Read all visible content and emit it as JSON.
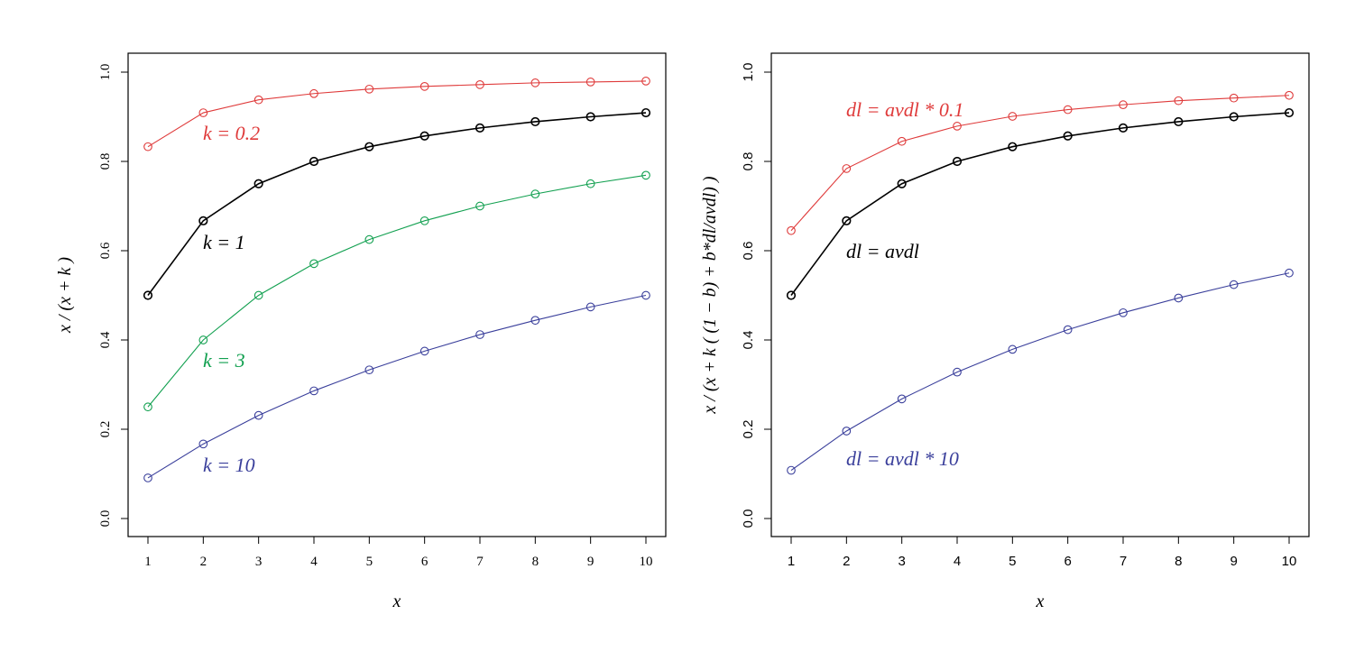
{
  "chart_data": [
    {
      "type": "line",
      "xlabel": "x",
      "ylabel": "x / (x + k )",
      "x": [
        1,
        2,
        3,
        4,
        5,
        6,
        7,
        8,
        9,
        10
      ],
      "xlim": [
        1,
        10
      ],
      "ylim": [
        0,
        1
      ],
      "xticks": [
        "1",
        "2",
        "3",
        "4",
        "5",
        "6",
        "7",
        "8",
        "9",
        "10"
      ],
      "yticks": [
        "0.0",
        "0.2",
        "0.4",
        "0.6",
        "0.8",
        "1.0"
      ],
      "grid": false,
      "legend": "none",
      "series": [
        {
          "name": "k = 0.2",
          "color": "#DF3A3A",
          "values": [
            0.833,
            0.909,
            0.938,
            0.952,
            0.962,
            0.968,
            0.972,
            0.976,
            0.978,
            0.98
          ]
        },
        {
          "name": "k = 1",
          "color": "#000000",
          "values": [
            0.5,
            0.667,
            0.75,
            0.8,
            0.833,
            0.857,
            0.875,
            0.889,
            0.9,
            0.909
          ]
        },
        {
          "name": "k = 3",
          "color": "#12A050",
          "values": [
            0.25,
            0.4,
            0.5,
            0.571,
            0.625,
            0.667,
            0.7,
            0.727,
            0.75,
            0.769
          ]
        },
        {
          "name": "k = 10",
          "color": "#3A3F9B",
          "values": [
            0.091,
            0.167,
            0.231,
            0.286,
            0.333,
            0.375,
            0.412,
            0.444,
            0.474,
            0.5
          ]
        }
      ]
    },
    {
      "type": "line",
      "xlabel": "x",
      "ylabel": "x / (x + k ( (1 − b) + b*dl/avdl) )",
      "x": [
        1,
        2,
        3,
        4,
        5,
        6,
        7,
        8,
        9,
        10
      ],
      "xlim": [
        1,
        10
      ],
      "ylim": [
        0,
        1
      ],
      "xticks": [
        "1",
        "2",
        "3",
        "4",
        "5",
        "6",
        "7",
        "8",
        "9",
        "10"
      ],
      "yticks": [
        "0.0",
        "0.2",
        "0.4",
        "0.6",
        "0.8",
        "1.0"
      ],
      "grid": false,
      "legend": "none",
      "series": [
        {
          "name": "dl = avdl * 0.1",
          "color": "#DF3A3A",
          "values": [
            0.645,
            0.784,
            0.845,
            0.879,
            0.901,
            0.916,
            0.927,
            0.936,
            0.942,
            0.948
          ]
        },
        {
          "name": "dl = avdl",
          "color": "#000000",
          "values": [
            0.5,
            0.667,
            0.75,
            0.8,
            0.833,
            0.857,
            0.875,
            0.889,
            0.9,
            0.909
          ]
        },
        {
          "name": "dl = avdl * 10",
          "color": "#3A3F9B",
          "values": [
            0.108,
            0.196,
            0.268,
            0.328,
            0.379,
            0.423,
            0.461,
            0.494,
            0.524,
            0.55
          ]
        }
      ]
    }
  ]
}
